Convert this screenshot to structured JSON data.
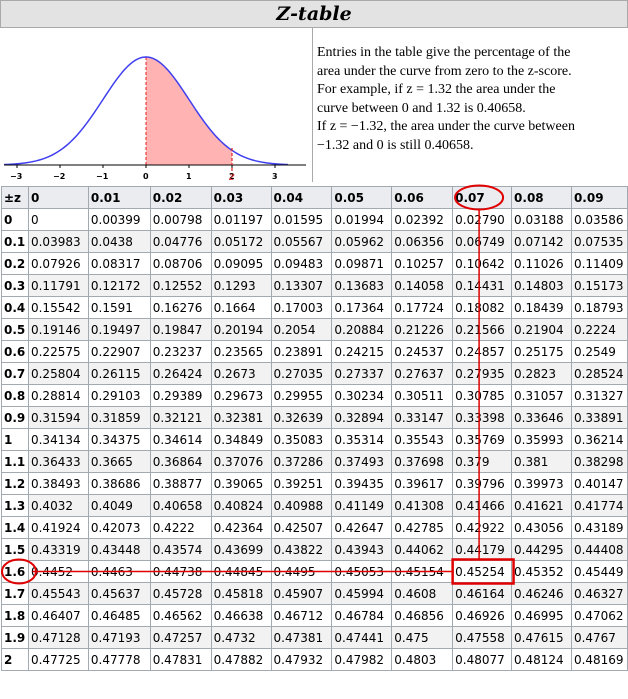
{
  "title": "Z-table",
  "description": [
    "Entries in the table give the percentage of the",
    "area under the curve from zero to the z-score.",
    "For example, if z = 1.32 the area under the",
    "curve between 0 and 1.32 is 0.40658.",
    "If z = −1.32, the area under the curve between",
    "−1.32 and 0 is still 0.40658."
  ],
  "graph": {
    "ticks": [
      "-3",
      "-2",
      "-1",
      "0",
      "1",
      "2",
      "3"
    ],
    "marker": "z",
    "curve_color": "#3f3ff0",
    "fill_color": "#ffb3b3",
    "marker_color": "#e02020"
  },
  "highlight": {
    "row_label": "1.6",
    "col_label": "0.07",
    "value": "0.45254",
    "color": "#e00000"
  },
  "table": {
    "corner": "±z",
    "columns": [
      "0",
      "0.01",
      "0.02",
      "0.03",
      "0.04",
      "0.05",
      "0.06",
      "0.07",
      "0.08",
      "0.09"
    ],
    "rows": [
      {
        "z": "0",
        "values": [
          "0",
          "0.00399",
          "0.00798",
          "0.01197",
          "0.01595",
          "0.01994",
          "0.02392",
          "0.02790",
          "0.03188",
          "0.03586"
        ]
      },
      {
        "z": "0.1",
        "values": [
          "0.03983",
          "0.0438",
          "0.04776",
          "0.05172",
          "0.05567",
          "0.05962",
          "0.06356",
          "0.06749",
          "0.07142",
          "0.07535"
        ]
      },
      {
        "z": "0.2",
        "values": [
          "0.07926",
          "0.08317",
          "0.08706",
          "0.09095",
          "0.09483",
          "0.09871",
          "0.10257",
          "0.10642",
          "0.11026",
          "0.11409"
        ]
      },
      {
        "z": "0.3",
        "values": [
          "0.11791",
          "0.12172",
          "0.12552",
          "0.1293",
          "0.13307",
          "0.13683",
          "0.14058",
          "0.14431",
          "0.14803",
          "0.15173"
        ]
      },
      {
        "z": "0.4",
        "values": [
          "0.15542",
          "0.1591",
          "0.16276",
          "0.1664",
          "0.17003",
          "0.17364",
          "0.17724",
          "0.18082",
          "0.18439",
          "0.18793"
        ]
      },
      {
        "z": "0.5",
        "values": [
          "0.19146",
          "0.19497",
          "0.19847",
          "0.20194",
          "0.2054",
          "0.20884",
          "0.21226",
          "0.21566",
          "0.21904",
          "0.2224"
        ]
      },
      {
        "z": "0.6",
        "values": [
          "0.22575",
          "0.22907",
          "0.23237",
          "0.23565",
          "0.23891",
          "0.24215",
          "0.24537",
          "0.24857",
          "0.25175",
          "0.2549"
        ]
      },
      {
        "z": "0.7",
        "values": [
          "0.25804",
          "0.26115",
          "0.26424",
          "0.2673",
          "0.27035",
          "0.27337",
          "0.27637",
          "0.27935",
          "0.2823",
          "0.28524"
        ]
      },
      {
        "z": "0.8",
        "values": [
          "0.28814",
          "0.29103",
          "0.29389",
          "0.29673",
          "0.29955",
          "0.30234",
          "0.30511",
          "0.30785",
          "0.31057",
          "0.31327"
        ]
      },
      {
        "z": "0.9",
        "values": [
          "0.31594",
          "0.31859",
          "0.32121",
          "0.32381",
          "0.32639",
          "0.32894",
          "0.33147",
          "0.33398",
          "0.33646",
          "0.33891"
        ]
      },
      {
        "z": "1",
        "values": [
          "0.34134",
          "0.34375",
          "0.34614",
          "0.34849",
          "0.35083",
          "0.35314",
          "0.35543",
          "0.35769",
          "0.35993",
          "0.36214"
        ]
      },
      {
        "z": "1.1",
        "values": [
          "0.36433",
          "0.3665",
          "0.36864",
          "0.37076",
          "0.37286",
          "0.37493",
          "0.37698",
          "0.379",
          "0.381",
          "0.38298"
        ]
      },
      {
        "z": "1.2",
        "values": [
          "0.38493",
          "0.38686",
          "0.38877",
          "0.39065",
          "0.39251",
          "0.39435",
          "0.39617",
          "0.39796",
          "0.39973",
          "0.40147"
        ]
      },
      {
        "z": "1.3",
        "values": [
          "0.4032",
          "0.4049",
          "0.40658",
          "0.40824",
          "0.40988",
          "0.41149",
          "0.41308",
          "0.41466",
          "0.41621",
          "0.41774"
        ]
      },
      {
        "z": "1.4",
        "values": [
          "0.41924",
          "0.42073",
          "0.4222",
          "0.42364",
          "0.42507",
          "0.42647",
          "0.42785",
          "0.42922",
          "0.43056",
          "0.43189"
        ]
      },
      {
        "z": "1.5",
        "values": [
          "0.43319",
          "0.43448",
          "0.43574",
          "0.43699",
          "0.43822",
          "0.43943",
          "0.44062",
          "0.44179",
          "0.44295",
          "0.44408"
        ]
      },
      {
        "z": "1.6",
        "values": [
          "0.4452",
          "0.4463",
          "0.44738",
          "0.44845",
          "0.4495",
          "0.45053",
          "0.45154",
          "0.45254",
          "0.45352",
          "0.45449"
        ]
      },
      {
        "z": "1.7",
        "values": [
          "0.45543",
          "0.45637",
          "0.45728",
          "0.45818",
          "0.45907",
          "0.45994",
          "0.4608",
          "0.46164",
          "0.46246",
          "0.46327"
        ]
      },
      {
        "z": "1.8",
        "values": [
          "0.46407",
          "0.46485",
          "0.46562",
          "0.46638",
          "0.46712",
          "0.46784",
          "0.46856",
          "0.46926",
          "0.46995",
          "0.47062"
        ]
      },
      {
        "z": "1.9",
        "values": [
          "0.47128",
          "0.47193",
          "0.47257",
          "0.4732",
          "0.47381",
          "0.47441",
          "0.475",
          "0.47558",
          "0.47615",
          "0.4767"
        ]
      },
      {
        "z": "2",
        "values": [
          "0.47725",
          "0.47778",
          "0.47831",
          "0.47882",
          "0.47932",
          "0.47982",
          "0.4803",
          "0.48077",
          "0.48124",
          "0.48169"
        ]
      }
    ]
  }
}
